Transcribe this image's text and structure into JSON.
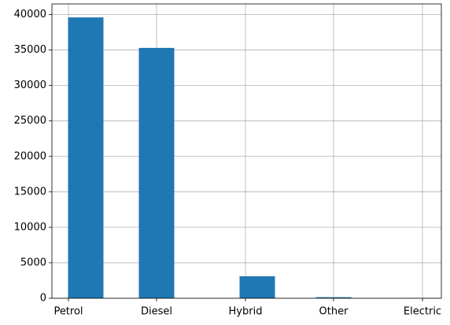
{
  "colors": {
    "bar": "#1f77b4",
    "grid": "#b0b0b0",
    "background": "#ffffff"
  },
  "chart_data": {
    "type": "bar",
    "title": "",
    "xlabel": "",
    "ylabel": "",
    "categories": [
      "Petrol",
      "Diesel",
      "Hybrid",
      "Other",
      "Electric"
    ],
    "values": [
      39600,
      35300,
      3100,
      150,
      20
    ],
    "ylim": [
      0,
      41500
    ],
    "yticks": [
      0,
      5000,
      10000,
      15000,
      20000,
      25000,
      30000,
      35000,
      40000
    ],
    "ytick_labels": [
      "0",
      "5000",
      "10000",
      "15000",
      "20000",
      "25000",
      "30000",
      "35000",
      "40000"
    ],
    "grid": true,
    "legend": "none"
  }
}
